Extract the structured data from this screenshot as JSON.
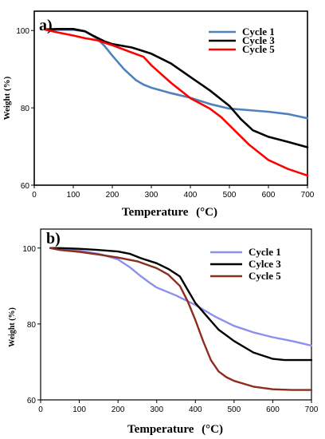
{
  "chart_data": [
    {
      "type": "line",
      "panel_label": "a)",
      "xlabel": "Temperature",
      "xlabel_unit": "(°C)",
      "ylabel": "Weight (%)",
      "xlim": [
        0,
        700
      ],
      "ylim": [
        60,
        105
      ],
      "xticks": [
        "0",
        "100",
        "200",
        "300",
        "400",
        "500",
        "600",
        "700"
      ],
      "yticks": [
        "60",
        "80",
        "100"
      ],
      "legend_position": "top-right",
      "grid": false,
      "series": [
        {
          "name": "Cycle 1",
          "color": "#4f81bd",
          "x": [
            30,
            60,
            100,
            130,
            160,
            180,
            200,
            230,
            260,
            280,
            300,
            350,
            400,
            450,
            500,
            550,
            600,
            650,
            700
          ],
          "y": [
            100.2,
            100.2,
            100.2,
            99.8,
            98.0,
            96.0,
            93.5,
            90.0,
            87.2,
            86.0,
            85.2,
            83.8,
            82.6,
            81.0,
            79.8,
            79.4,
            79.0,
            78.4,
            77.3
          ]
        },
        {
          "name": "Cycle 3",
          "color": "#000000",
          "x": [
            30,
            60,
            100,
            130,
            150,
            180,
            200,
            250,
            300,
            350,
            400,
            450,
            500,
            530,
            560,
            600,
            650,
            700
          ],
          "y": [
            100.3,
            100.4,
            100.4,
            99.8,
            98.7,
            97.2,
            96.5,
            95.6,
            94.0,
            91.5,
            88.0,
            84.5,
            80.5,
            77.0,
            74.2,
            72.5,
            71.2,
            69.8
          ]
        },
        {
          "name": "Cycle 5",
          "color": "#ff0000",
          "x": [
            30,
            60,
            100,
            130,
            160,
            200,
            250,
            280,
            300,
            350,
            400,
            450,
            480,
            500,
            550,
            600,
            650,
            700
          ],
          "y": [
            100.2,
            99.5,
            98.7,
            98.0,
            97.5,
            96.2,
            94.3,
            93.2,
            91.0,
            86.5,
            82.5,
            79.8,
            77.5,
            75.5,
            70.5,
            66.5,
            64.2,
            62.5
          ]
        }
      ]
    },
    {
      "type": "line",
      "panel_label": "b)",
      "xlabel": "Temperature",
      "xlabel_unit": "(°C)",
      "ylabel": "Weight (%)",
      "xlim": [
        0,
        700
      ],
      "ylim": [
        60,
        105
      ],
      "xticks": [
        "0",
        "100",
        "200",
        "300",
        "400",
        "500",
        "600",
        "700"
      ],
      "yticks": [
        "60",
        "80",
        "100"
      ],
      "legend_position": "top-right",
      "grid": false,
      "series": [
        {
          "name": "Cycle 1",
          "color": "#8b8ff0",
          "x": [
            25,
            50,
            100,
            150,
            200,
            230,
            260,
            280,
            300,
            350,
            400,
            450,
            500,
            550,
            600,
            650,
            700
          ],
          "y": [
            100.0,
            99.8,
            99.3,
            98.5,
            97.0,
            95.0,
            92.5,
            91.0,
            89.6,
            87.5,
            85.0,
            82.0,
            79.5,
            77.8,
            76.5,
            75.5,
            74.3
          ]
        },
        {
          "name": "Cylce 3",
          "color": "#000000",
          "x": [
            25,
            50,
            100,
            150,
            200,
            230,
            260,
            300,
            330,
            360,
            380,
            400,
            430,
            460,
            500,
            550,
            600,
            630,
            700
          ],
          "y": [
            100.0,
            100.0,
            99.8,
            99.5,
            99.1,
            98.5,
            97.3,
            96.0,
            94.5,
            92.5,
            89.0,
            85.5,
            82.0,
            78.5,
            75.5,
            72.5,
            70.8,
            70.5,
            70.5
          ]
        },
        {
          "name": "Cycle 5",
          "color": "#8b2e1e",
          "x": [
            25,
            50,
            100,
            150,
            200,
            250,
            300,
            330,
            360,
            380,
            400,
            420,
            440,
            460,
            480,
            500,
            550,
            600,
            650,
            700
          ],
          "y": [
            100.0,
            99.5,
            99.0,
            98.3,
            97.5,
            96.5,
            94.7,
            93.0,
            90.0,
            86.0,
            81.0,
            75.5,
            70.5,
            67.5,
            66.0,
            65.0,
            63.5,
            62.8,
            62.6,
            62.6
          ]
        }
      ]
    }
  ]
}
